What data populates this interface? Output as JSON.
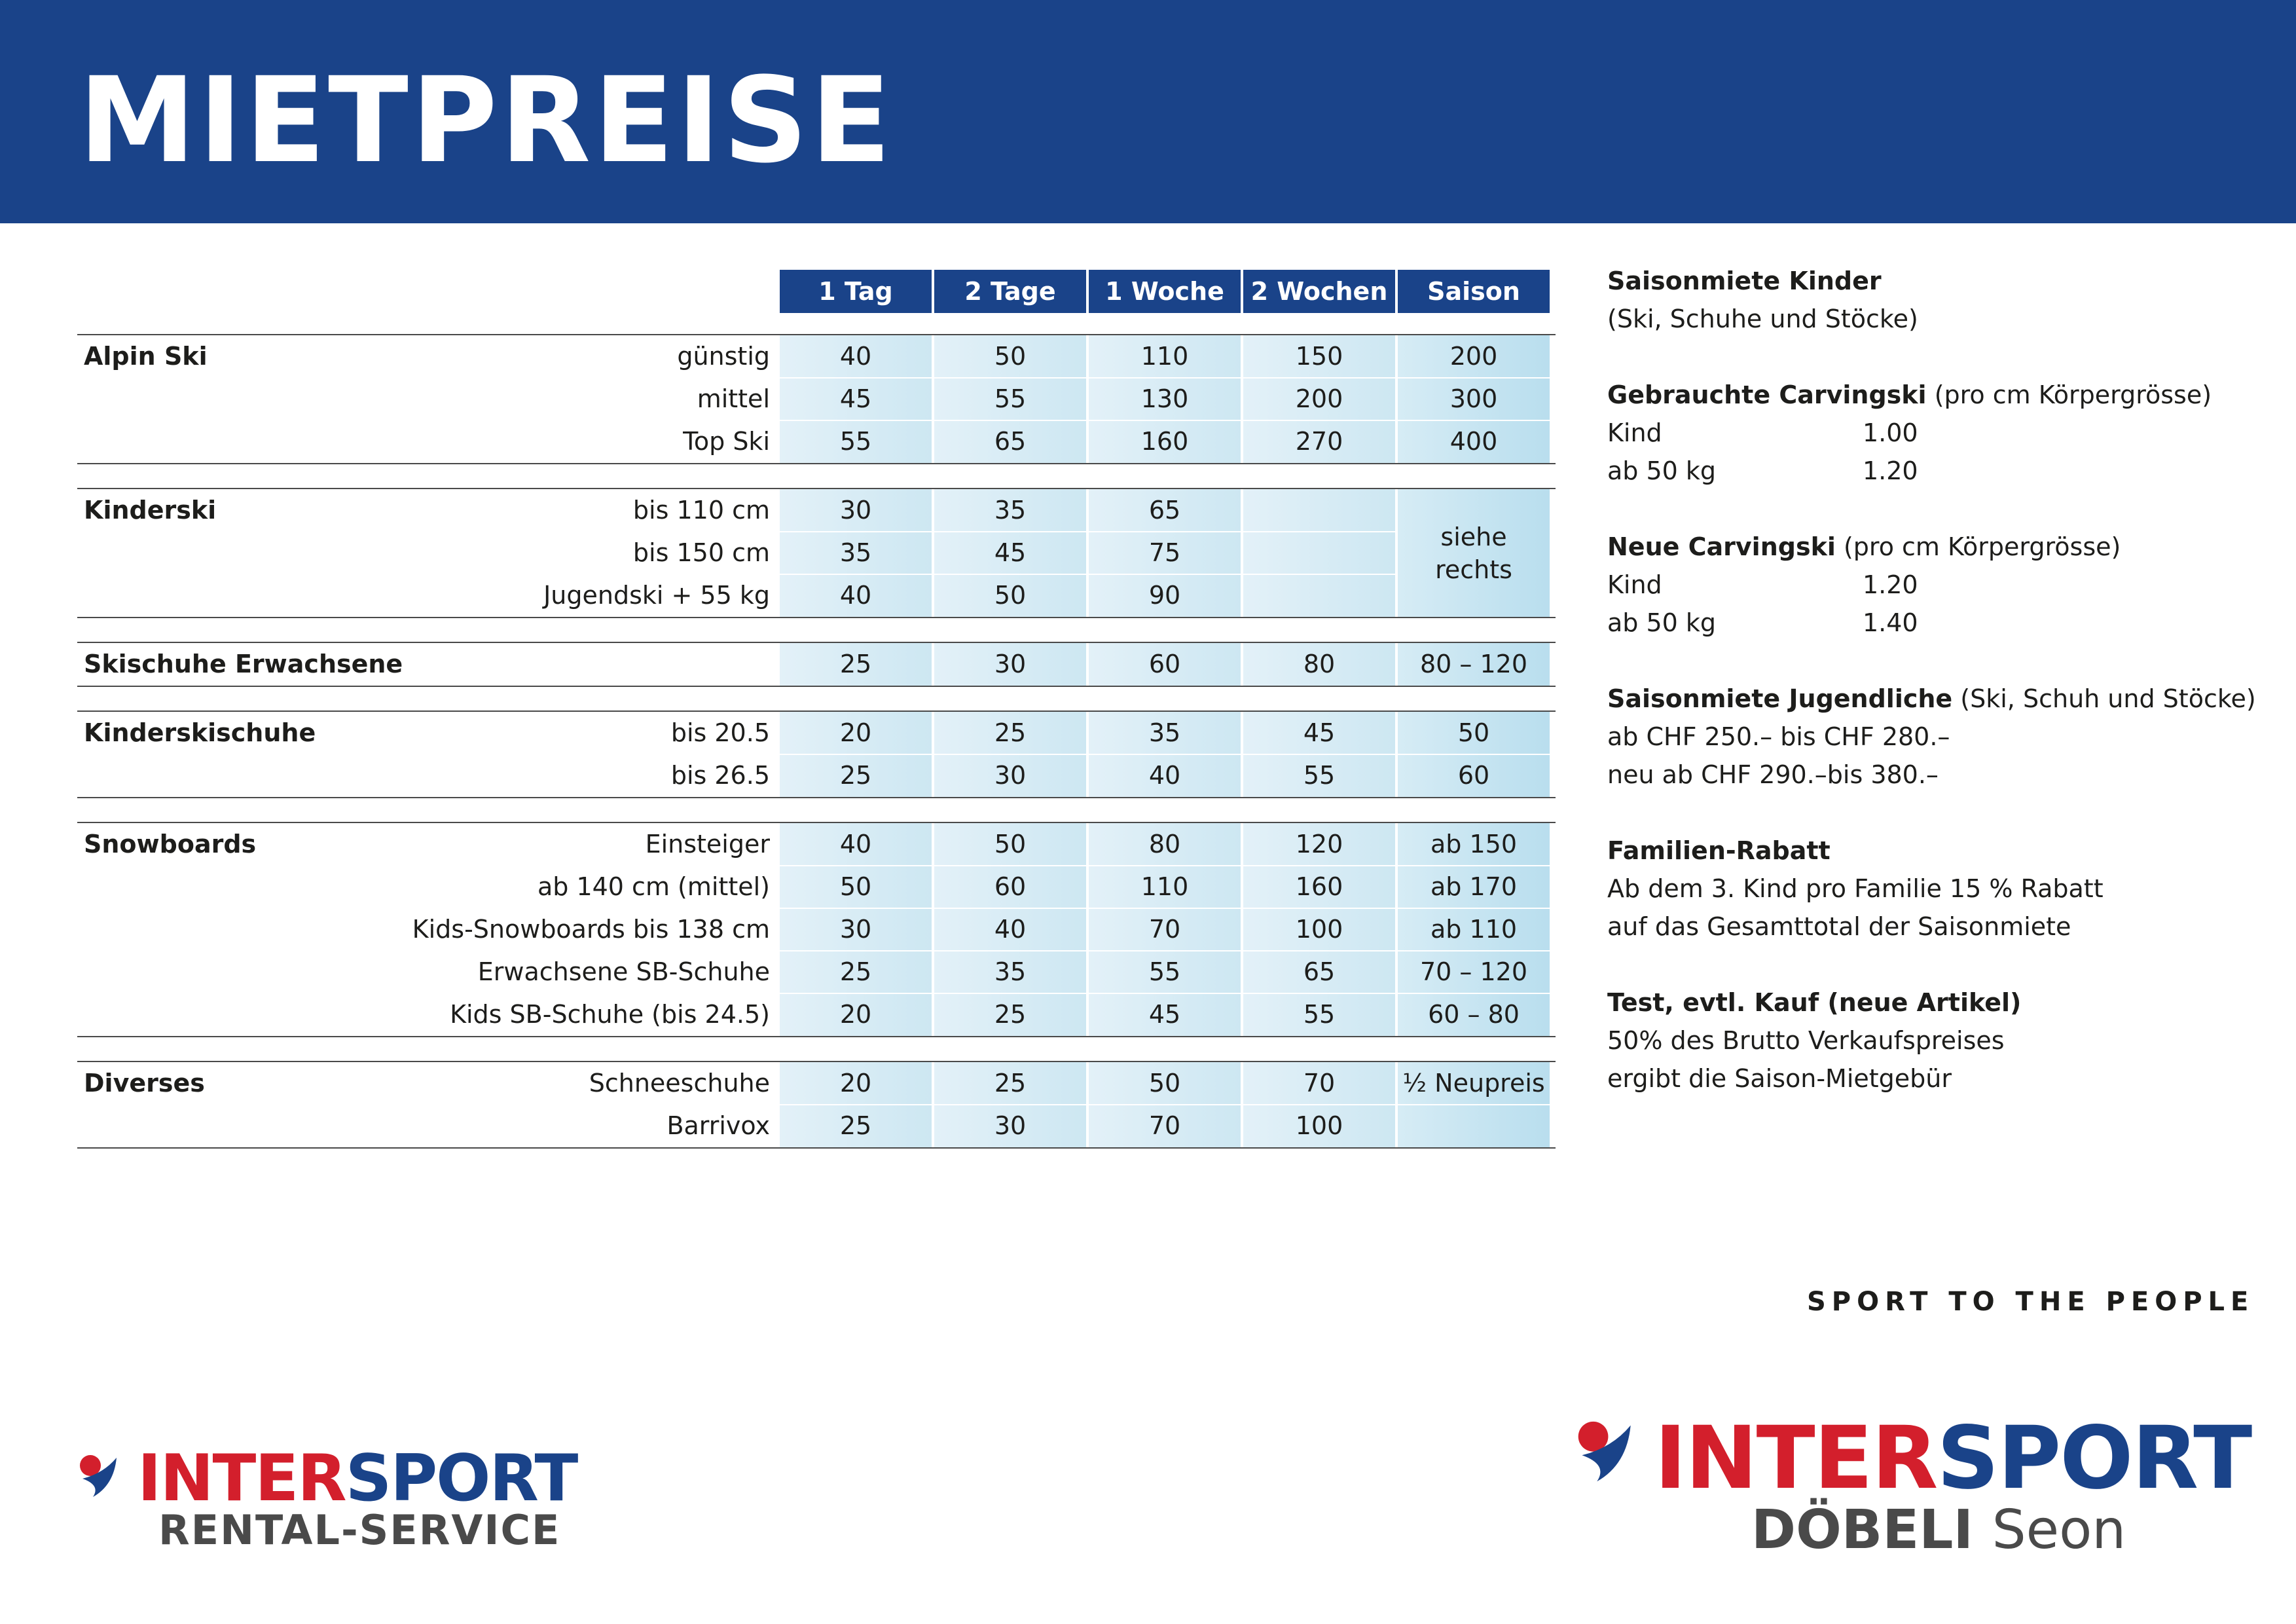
{
  "title": "MIETPREISE",
  "columns": [
    "1 Tag",
    "2 Tage",
    "1 Woche",
    "2 Wochen",
    "Saison"
  ],
  "groups": [
    {
      "name": "Alpin Ski",
      "rows": [
        {
          "label": "günstig",
          "values": [
            "40",
            "50",
            "110",
            "150",
            "200"
          ]
        },
        {
          "label": "mittel",
          "values": [
            "45",
            "55",
            "130",
            "200",
            "300"
          ]
        },
        {
          "label": "Top Ski",
          "values": [
            "55",
            "65",
            "160",
            "270",
            "400"
          ]
        }
      ]
    },
    {
      "name": "Kinderski",
      "rows": [
        {
          "label": "bis 110 cm",
          "values": [
            "30",
            "35",
            "65",
            ""
          ]
        },
        {
          "label": "bis 150 cm",
          "values": [
            "35",
            "45",
            "75",
            ""
          ]
        },
        {
          "label": "Jugendski + 55 kg",
          "values": [
            "40",
            "50",
            "90",
            ""
          ]
        }
      ],
      "season_note": "siehe rechts"
    },
    {
      "name": "Skischuhe Erwachsene",
      "rows": [
        {
          "label": "",
          "values": [
            "25",
            "30",
            "60",
            "80",
            "80 – 120"
          ]
        }
      ]
    },
    {
      "name": "Kinderskischuhe",
      "rows": [
        {
          "label": "bis 20.5",
          "values": [
            "20",
            "25",
            "35",
            "45",
            "50"
          ]
        },
        {
          "label": "bis 26.5",
          "values": [
            "25",
            "30",
            "40",
            "55",
            "60"
          ]
        }
      ]
    },
    {
      "name": "Snowboards",
      "rows": [
        {
          "label": "Einsteiger",
          "values": [
            "40",
            "50",
            "80",
            "120",
            "ab  150"
          ]
        },
        {
          "label": "ab 140 cm (mittel)",
          "values": [
            "50",
            "60",
            "110",
            "160",
            "ab  170"
          ]
        },
        {
          "label": "Kids-Snowboards bis 138 cm",
          "values": [
            "30",
            "40",
            "70",
            "100",
            "ab  110"
          ]
        },
        {
          "label": "Erwachsene SB-Schuhe",
          "values": [
            "25",
            "35",
            "55",
            "65",
            "70 – 120"
          ]
        },
        {
          "label": "Kids SB-Schuhe (bis 24.5)",
          "values": [
            "20",
            "25",
            "45",
            "55",
            "60 – 80"
          ]
        }
      ]
    },
    {
      "name": "Diverses",
      "rows": [
        {
          "label": "Schneeschuhe",
          "values": [
            "20",
            "25",
            "50",
            "70",
            "½ Neupreis"
          ]
        },
        {
          "label": "Barrivox",
          "values": [
            "25",
            "30",
            "70",
            "100",
            ""
          ]
        }
      ]
    }
  ],
  "info": {
    "kinder": {
      "title": "Saisonmiete Kinder",
      "text": "(Ski, Schuhe und Stöcke)"
    },
    "gebraucht": {
      "title": "Gebrauchte Carvingski",
      "note": "(pro cm Körpergrösse)",
      "rows": [
        {
          "k": "Kind",
          "v": "1.00"
        },
        {
          "k": "ab 50 kg",
          "v": "1.20"
        }
      ]
    },
    "neu": {
      "title": "Neue Carvingski",
      "note": "(pro cm Körpergrösse)",
      "rows": [
        {
          "k": "Kind",
          "v": "1.20"
        },
        {
          "k": "ab 50 kg",
          "v": "1.40"
        }
      ]
    },
    "jugend": {
      "title": "Saisonmiete Jugendliche",
      "note": "(Ski, Schuh und Stöcke)",
      "line1": "ab CHF 250.– bis CHF 280.–",
      "line2": "neu ab CHF 290.–bis 380.–"
    },
    "familie": {
      "title": "Familien-Rabatt",
      "line1": "Ab dem 3. Kind pro Familie 15 % Rabatt",
      "line2": "auf das Gesamttotal der Saisonmiete"
    },
    "test": {
      "title": "Test, evtl. Kauf (neue Artikel)",
      "line1": "50% des Brutto Verkaufspreises",
      "line2": "ergibt die Saison-Mietgebür"
    }
  },
  "slogan": "SPORT TO THE PEOPLE",
  "logo_left": {
    "word_a": "INTER",
    "word_b": "SPORT",
    "sub": "RENTAL-SERVICE"
  },
  "logo_right": {
    "word_a": "INTER",
    "word_b": "SPORT",
    "sub_bold": "DÖBELI",
    "sub_light": "Seon"
  },
  "colors": {
    "brand_blue": "#1a4389",
    "brand_red": "#d31f2c",
    "cell_light": "#e3f1f8",
    "cell_dark": "#b9deee"
  }
}
